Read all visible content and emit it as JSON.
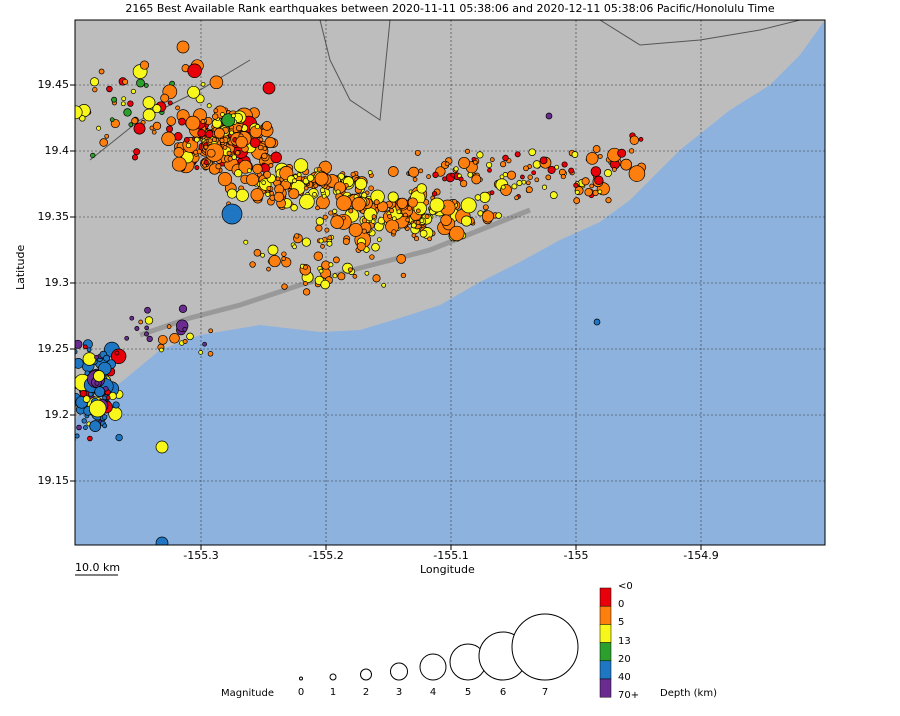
{
  "title": "2165 Best Available Rank earthquakes between 2020-11-11 05:38:06 and 2020-12-11 05:38:06 Pacific/Honolulu Time",
  "axes": {
    "xlabel": "Longitude",
    "ylabel": "Latitude",
    "xticks": [
      "-155.3",
      "-155.2",
      "-155.1",
      "-155",
      "-154.9"
    ],
    "yticks": [
      "19.45",
      "19.4",
      "19.35",
      "19.3",
      "19.25",
      "19.2",
      "19.15"
    ]
  },
  "scalebar": "10.0 km",
  "magnitude_legend": {
    "label": "Magnitude",
    "values": [
      "0",
      "1",
      "2",
      "3",
      "4",
      "5",
      "6",
      "7"
    ]
  },
  "depth_legend": {
    "label": "Depth (km)",
    "labels": [
      "<0",
      "0",
      "5",
      "13",
      "20",
      "40",
      "70+"
    ],
    "colors": [
      "#e8000b",
      "#ff7f0e",
      "#f7f71c",
      "#2ca02c",
      "#1f77c4",
      "#6a2c91"
    ]
  },
  "colors": {
    "land": "#bdbdbd",
    "ocean": "#8db2de",
    "grid": "#333333"
  }
}
